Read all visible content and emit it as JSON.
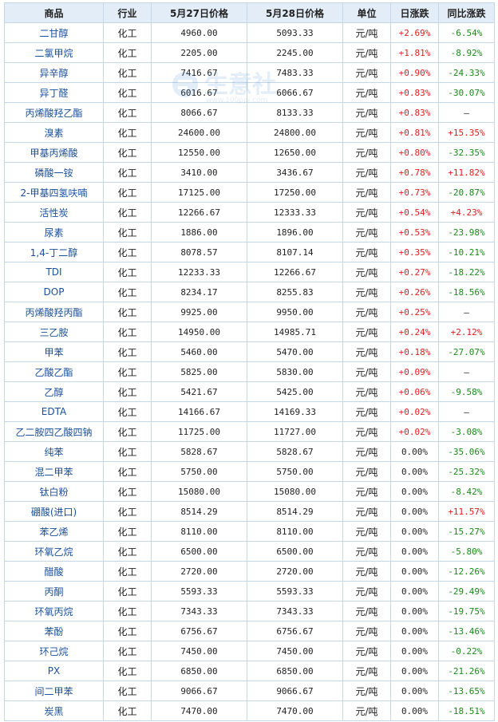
{
  "watermark": {
    "brand": "生意社",
    "url": "www.100ppi.com"
  },
  "colors": {
    "header_bg": "#e3edf7",
    "border": "#c5d6e6",
    "up": "#e21b1b",
    "down": "#1a8a1a",
    "product_link": "#1a4f9c"
  },
  "table": {
    "headers": {
      "product": "商品",
      "industry": "行业",
      "price_day1": "5月27日价格",
      "price_day2": "5月28日价格",
      "unit": "单位",
      "daily_change": "日涨跌",
      "yoy_change": "同比涨跌"
    },
    "rows": [
      {
        "product": "二甘醇",
        "industry": "化工",
        "p1": "4960.00",
        "p2": "5093.33",
        "unit": "元/吨",
        "daily": "+2.69%",
        "yoy": "-6.54%",
        "daily_dir": "up",
        "yoy_dir": "down"
      },
      {
        "product": "二氯甲烷",
        "industry": "化工",
        "p1": "2205.00",
        "p2": "2245.00",
        "unit": "元/吨",
        "daily": "+1.81%",
        "yoy": "-8.92%",
        "daily_dir": "up",
        "yoy_dir": "down"
      },
      {
        "product": "异辛醇",
        "industry": "化工",
        "p1": "7416.67",
        "p2": "7483.33",
        "unit": "元/吨",
        "daily": "+0.90%",
        "yoy": "-24.33%",
        "daily_dir": "up",
        "yoy_dir": "down"
      },
      {
        "product": "异丁醛",
        "industry": "化工",
        "p1": "6016.67",
        "p2": "6066.67",
        "unit": "元/吨",
        "daily": "+0.83%",
        "yoy": "-30.07%",
        "daily_dir": "up",
        "yoy_dir": "down"
      },
      {
        "product": "丙烯酸羟乙酯",
        "industry": "化工",
        "p1": "8066.67",
        "p2": "8133.33",
        "unit": "元/吨",
        "daily": "+0.83%",
        "yoy": "—",
        "daily_dir": "up",
        "yoy_dir": "flat"
      },
      {
        "product": "溴素",
        "industry": "化工",
        "p1": "24600.00",
        "p2": "24800.00",
        "unit": "元/吨",
        "daily": "+0.81%",
        "yoy": "+15.35%",
        "daily_dir": "up",
        "yoy_dir": "up"
      },
      {
        "product": "甲基丙烯酸",
        "industry": "化工",
        "p1": "12550.00",
        "p2": "12650.00",
        "unit": "元/吨",
        "daily": "+0.80%",
        "yoy": "-32.35%",
        "daily_dir": "up",
        "yoy_dir": "down"
      },
      {
        "product": "磷酸一铵",
        "industry": "化工",
        "p1": "3410.00",
        "p2": "3436.67",
        "unit": "元/吨",
        "daily": "+0.78%",
        "yoy": "+11.82%",
        "daily_dir": "up",
        "yoy_dir": "up"
      },
      {
        "product": "2-甲基四氢呋喃",
        "industry": "化工",
        "p1": "17125.00",
        "p2": "17250.00",
        "unit": "元/吨",
        "daily": "+0.73%",
        "yoy": "-20.87%",
        "daily_dir": "up",
        "yoy_dir": "down"
      },
      {
        "product": "活性炭",
        "industry": "化工",
        "p1": "12266.67",
        "p2": "12333.33",
        "unit": "元/吨",
        "daily": "+0.54%",
        "yoy": "+4.23%",
        "daily_dir": "up",
        "yoy_dir": "up"
      },
      {
        "product": "尿素",
        "industry": "化工",
        "p1": "1886.00",
        "p2": "1896.00",
        "unit": "元/吨",
        "daily": "+0.53%",
        "yoy": "-23.98%",
        "daily_dir": "up",
        "yoy_dir": "down"
      },
      {
        "product": "1,4-丁二醇",
        "industry": "化工",
        "p1": "8078.57",
        "p2": "8107.14",
        "unit": "元/吨",
        "daily": "+0.35%",
        "yoy": "-10.21%",
        "daily_dir": "up",
        "yoy_dir": "down"
      },
      {
        "product": "TDI",
        "industry": "化工",
        "p1": "12233.33",
        "p2": "12266.67",
        "unit": "元/吨",
        "daily": "+0.27%",
        "yoy": "-18.22%",
        "daily_dir": "up",
        "yoy_dir": "down"
      },
      {
        "product": "DOP",
        "industry": "化工",
        "p1": "8234.17",
        "p2": "8255.83",
        "unit": "元/吨",
        "daily": "+0.26%",
        "yoy": "-18.56%",
        "daily_dir": "up",
        "yoy_dir": "down"
      },
      {
        "product": "丙烯酸羟丙酯",
        "industry": "化工",
        "p1": "9925.00",
        "p2": "9950.00",
        "unit": "元/吨",
        "daily": "+0.25%",
        "yoy": "—",
        "daily_dir": "up",
        "yoy_dir": "flat"
      },
      {
        "product": "三乙胺",
        "industry": "化工",
        "p1": "14950.00",
        "p2": "14985.71",
        "unit": "元/吨",
        "daily": "+0.24%",
        "yoy": "+2.12%",
        "daily_dir": "up",
        "yoy_dir": "up"
      },
      {
        "product": "甲苯",
        "industry": "化工",
        "p1": "5460.00",
        "p2": "5470.00",
        "unit": "元/吨",
        "daily": "+0.18%",
        "yoy": "-27.07%",
        "daily_dir": "up",
        "yoy_dir": "down"
      },
      {
        "product": "乙酸乙酯",
        "industry": "化工",
        "p1": "5825.00",
        "p2": "5830.00",
        "unit": "元/吨",
        "daily": "+0.09%",
        "yoy": "—",
        "daily_dir": "up",
        "yoy_dir": "flat"
      },
      {
        "product": "乙醇",
        "industry": "化工",
        "p1": "5421.67",
        "p2": "5425.00",
        "unit": "元/吨",
        "daily": "+0.06%",
        "yoy": "-9.58%",
        "daily_dir": "up",
        "yoy_dir": "down"
      },
      {
        "product": "EDTA",
        "industry": "化工",
        "p1": "14166.67",
        "p2": "14169.33",
        "unit": "元/吨",
        "daily": "+0.02%",
        "yoy": "—",
        "daily_dir": "up",
        "yoy_dir": "flat"
      },
      {
        "product": "乙二胺四乙酸四钠",
        "industry": "化工",
        "p1": "11725.00",
        "p2": "11727.00",
        "unit": "元/吨",
        "daily": "+0.02%",
        "yoy": "-3.08%",
        "daily_dir": "up",
        "yoy_dir": "down"
      },
      {
        "product": "纯苯",
        "industry": "化工",
        "p1": "5828.67",
        "p2": "5828.67",
        "unit": "元/吨",
        "daily": "0.00%",
        "yoy": "-35.06%",
        "daily_dir": "flat",
        "yoy_dir": "down"
      },
      {
        "product": "混二甲苯",
        "industry": "化工",
        "p1": "5750.00",
        "p2": "5750.00",
        "unit": "元/吨",
        "daily": "0.00%",
        "yoy": "-25.32%",
        "daily_dir": "flat",
        "yoy_dir": "down"
      },
      {
        "product": "钛白粉",
        "industry": "化工",
        "p1": "15080.00",
        "p2": "15080.00",
        "unit": "元/吨",
        "daily": "0.00%",
        "yoy": "-8.42%",
        "daily_dir": "flat",
        "yoy_dir": "down"
      },
      {
        "product": "硼酸(进口)",
        "industry": "化工",
        "p1": "8514.29",
        "p2": "8514.29",
        "unit": "元/吨",
        "daily": "0.00%",
        "yoy": "+11.57%",
        "daily_dir": "flat",
        "yoy_dir": "up"
      },
      {
        "product": "苯乙烯",
        "industry": "化工",
        "p1": "8110.00",
        "p2": "8110.00",
        "unit": "元/吨",
        "daily": "0.00%",
        "yoy": "-15.27%",
        "daily_dir": "flat",
        "yoy_dir": "down"
      },
      {
        "product": "环氧乙烷",
        "industry": "化工",
        "p1": "6500.00",
        "p2": "6500.00",
        "unit": "元/吨",
        "daily": "0.00%",
        "yoy": "-5.80%",
        "daily_dir": "flat",
        "yoy_dir": "down"
      },
      {
        "product": "醋酸",
        "industry": "化工",
        "p1": "2720.00",
        "p2": "2720.00",
        "unit": "元/吨",
        "daily": "0.00%",
        "yoy": "-12.26%",
        "daily_dir": "flat",
        "yoy_dir": "down"
      },
      {
        "product": "丙酮",
        "industry": "化工",
        "p1": "5593.33",
        "p2": "5593.33",
        "unit": "元/吨",
        "daily": "0.00%",
        "yoy": "-29.49%",
        "daily_dir": "flat",
        "yoy_dir": "down"
      },
      {
        "product": "环氧丙烷",
        "industry": "化工",
        "p1": "7343.33",
        "p2": "7343.33",
        "unit": "元/吨",
        "daily": "0.00%",
        "yoy": "-19.75%",
        "daily_dir": "flat",
        "yoy_dir": "down"
      },
      {
        "product": "苯酚",
        "industry": "化工",
        "p1": "6756.67",
        "p2": "6756.67",
        "unit": "元/吨",
        "daily": "0.00%",
        "yoy": "-13.46%",
        "daily_dir": "flat",
        "yoy_dir": "down"
      },
      {
        "product": "环己烷",
        "industry": "化工",
        "p1": "7450.00",
        "p2": "7450.00",
        "unit": "元/吨",
        "daily": "0.00%",
        "yoy": "-0.22%",
        "daily_dir": "flat",
        "yoy_dir": "down"
      },
      {
        "product": "PX",
        "industry": "化工",
        "p1": "6850.00",
        "p2": "6850.00",
        "unit": "元/吨",
        "daily": "0.00%",
        "yoy": "-21.26%",
        "daily_dir": "flat",
        "yoy_dir": "down"
      },
      {
        "product": "间二甲苯",
        "industry": "化工",
        "p1": "9066.67",
        "p2": "9066.67",
        "unit": "元/吨",
        "daily": "0.00%",
        "yoy": "-13.65%",
        "daily_dir": "flat",
        "yoy_dir": "down"
      },
      {
        "product": "炭黑",
        "industry": "化工",
        "p1": "7470.00",
        "p2": "7470.00",
        "unit": "元/吨",
        "daily": "0.00%",
        "yoy": "-18.51%",
        "daily_dir": "flat",
        "yoy_dir": "down"
      }
    ]
  }
}
